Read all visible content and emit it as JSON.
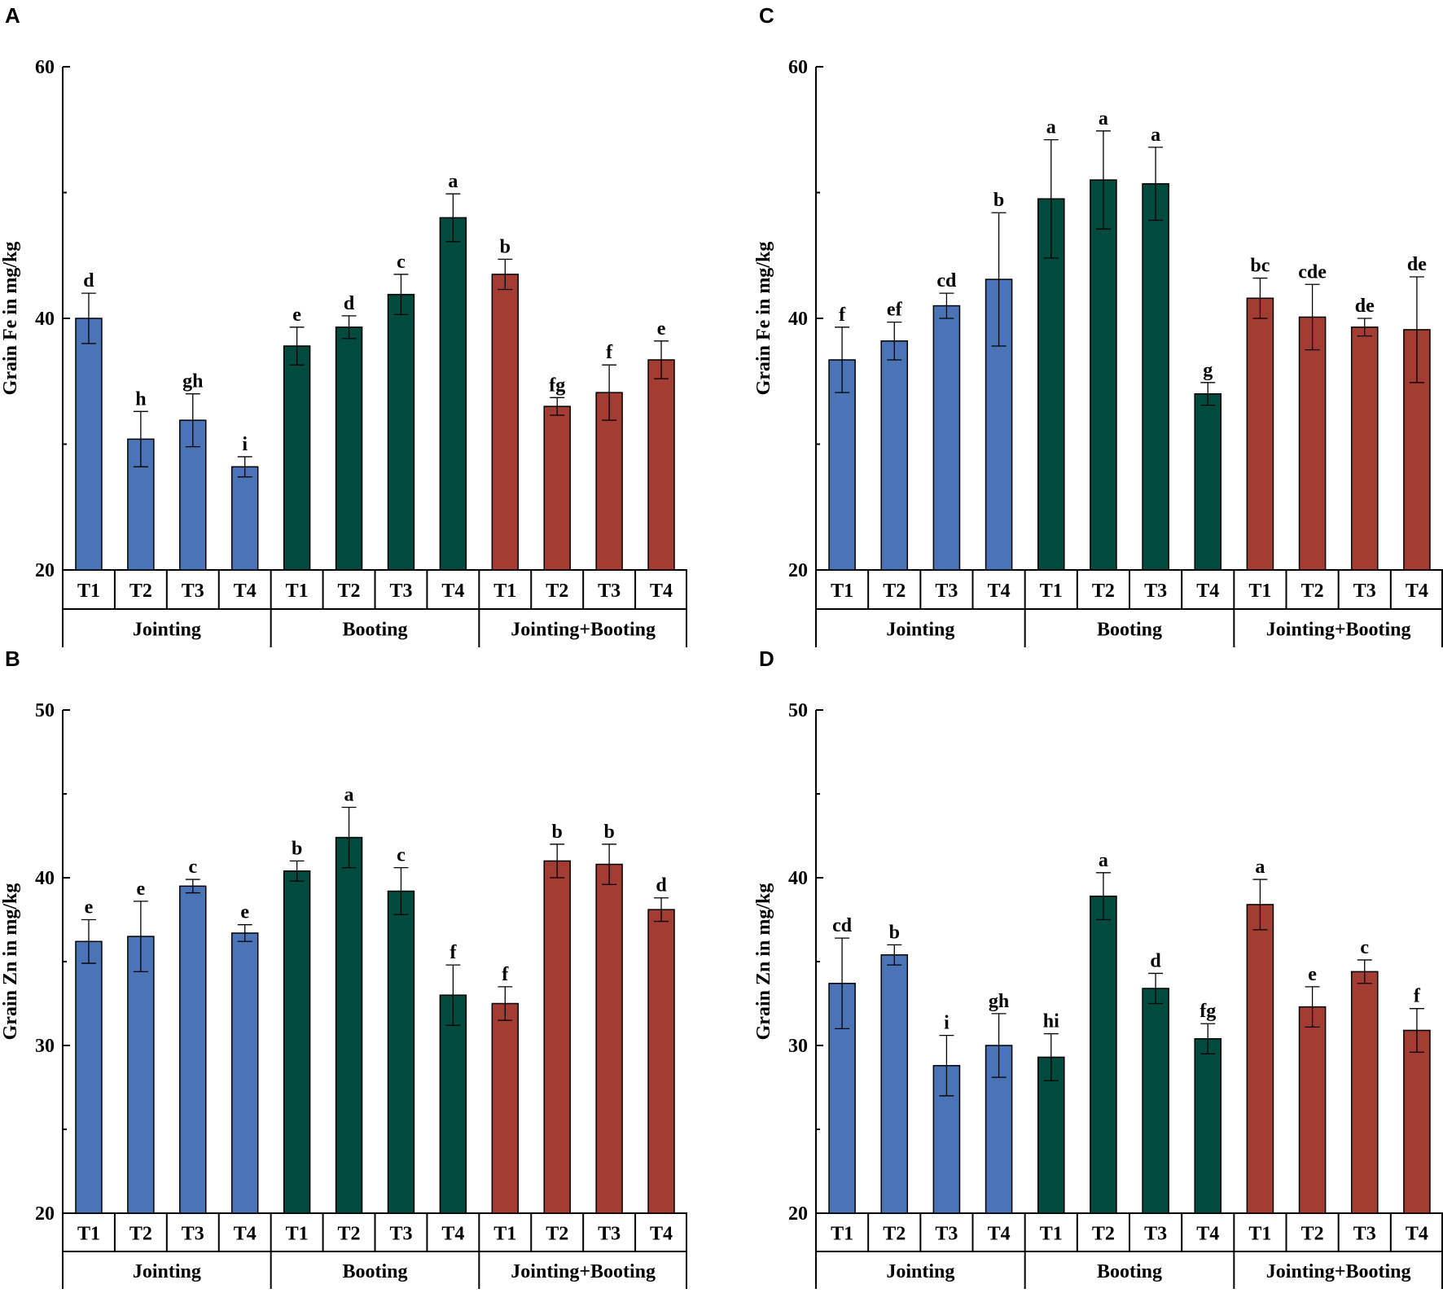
{
  "colors": {
    "jointing": "#4a74b6",
    "booting": "#014a3e",
    "jointing_booting": "#a33d33",
    "axis": "#000000"
  },
  "chart_data": [
    {
      "panel": "A",
      "type": "bar",
      "ylabel": "Grain Fe in mg/kg",
      "ylim": [
        20,
        60
      ],
      "yticks": [
        20,
        40,
        60
      ],
      "categories": [
        "T1",
        "T2",
        "T3",
        "T4"
      ],
      "groups": [
        "Jointing",
        "Booting",
        "Jointing+Booting"
      ],
      "series": [
        {
          "name": "Jointing",
          "color_key": "jointing",
          "values": [
            40.0,
            30.4,
            31.9,
            28.2
          ],
          "errors": [
            2.0,
            2.2,
            2.1,
            0.8
          ],
          "letters": [
            "d",
            "h",
            "gh",
            "i"
          ]
        },
        {
          "name": "Booting",
          "color_key": "booting",
          "values": [
            37.8,
            39.3,
            41.9,
            48.0
          ],
          "errors": [
            1.5,
            0.9,
            1.6,
            1.9
          ],
          "letters": [
            "e",
            "d",
            "c",
            "a"
          ]
        },
        {
          "name": "Jointing+Booting",
          "color_key": "jointing_booting",
          "values": [
            43.5,
            33.0,
            34.1,
            36.7
          ],
          "errors": [
            1.2,
            0.7,
            2.2,
            1.5
          ],
          "letters": [
            "b",
            "fg",
            "f",
            "e"
          ]
        }
      ]
    },
    {
      "panel": "C",
      "type": "bar",
      "ylabel": "Grain Fe in mg/kg",
      "ylim": [
        20,
        60
      ],
      "yticks": [
        20,
        40,
        60
      ],
      "categories": [
        "T1",
        "T2",
        "T3",
        "T4"
      ],
      "groups": [
        "Jointing",
        "Booting",
        "Jointing+Booting"
      ],
      "series": [
        {
          "name": "Jointing",
          "color_key": "jointing",
          "values": [
            36.7,
            38.2,
            41.0,
            43.1
          ],
          "errors": [
            2.6,
            1.5,
            1.0,
            5.3
          ],
          "letters": [
            "f",
            "ef",
            "cd",
            "b"
          ]
        },
        {
          "name": "Booting",
          "color_key": "booting",
          "values": [
            49.5,
            51.0,
            50.7,
            34.0
          ],
          "errors": [
            4.7,
            3.9,
            2.9,
            0.9
          ],
          "letters": [
            "a",
            "a",
            "a",
            "g"
          ]
        },
        {
          "name": "Jointing+Booting",
          "color_key": "jointing_booting",
          "values": [
            41.6,
            40.1,
            39.3,
            39.1
          ],
          "errors": [
            1.6,
            2.6,
            0.7,
            4.2
          ],
          "letters": [
            "bc",
            "cde",
            "de",
            "de"
          ]
        }
      ]
    },
    {
      "panel": "B",
      "type": "bar",
      "ylabel": "Grain Zn in mg/kg",
      "ylim": [
        20,
        50
      ],
      "yticks": [
        20,
        30,
        40,
        50
      ],
      "categories": [
        "T1",
        "T2",
        "T3",
        "T4"
      ],
      "groups": [
        "Jointing",
        "Booting",
        "Jointing+Booting"
      ],
      "series": [
        {
          "name": "Jointing",
          "color_key": "jointing",
          "values": [
            36.2,
            36.5,
            39.5,
            36.7
          ],
          "errors": [
            1.3,
            2.1,
            0.4,
            0.5
          ],
          "letters": [
            "e",
            "e",
            "c",
            "e"
          ]
        },
        {
          "name": "Booting",
          "color_key": "booting",
          "values": [
            40.4,
            42.4,
            39.2,
            33.0
          ],
          "errors": [
            0.6,
            1.8,
            1.4,
            1.8
          ],
          "letters": [
            "b",
            "a",
            "c",
            "f"
          ]
        },
        {
          "name": "Jointing+Booting",
          "color_key": "jointing_booting",
          "values": [
            32.5,
            41.0,
            40.8,
            38.1
          ],
          "errors": [
            1.0,
            1.0,
            1.2,
            0.7
          ],
          "letters": [
            "f",
            "b",
            "b",
            "d"
          ]
        }
      ]
    },
    {
      "panel": "D",
      "type": "bar",
      "ylabel": "Grain Zn in mg/kg",
      "ylim": [
        20,
        50
      ],
      "yticks": [
        20,
        30,
        40,
        50
      ],
      "categories": [
        "T1",
        "T2",
        "T3",
        "T4"
      ],
      "groups": [
        "Jointing",
        "Booting",
        "Jointing+Booting"
      ],
      "series": [
        {
          "name": "Jointing",
          "color_key": "jointing",
          "values": [
            33.7,
            35.4,
            28.8,
            30.0
          ],
          "errors": [
            2.7,
            0.6,
            1.8,
            1.9
          ],
          "letters": [
            "cd",
            "b",
            "i",
            "gh"
          ]
        },
        {
          "name": "Booting",
          "color_key": "booting",
          "values": [
            29.3,
            38.9,
            33.4,
            30.4
          ],
          "errors": [
            1.4,
            1.4,
            0.9,
            0.9
          ],
          "letters": [
            "hi",
            "a",
            "d",
            "fg"
          ]
        },
        {
          "name": "Jointing+Booting",
          "color_key": "jointing_booting",
          "values": [
            38.4,
            32.3,
            34.4,
            30.9
          ],
          "errors": [
            1.5,
            1.2,
            0.7,
            1.3
          ],
          "letters": [
            "a",
            "e",
            "c",
            "f"
          ]
        }
      ]
    }
  ]
}
